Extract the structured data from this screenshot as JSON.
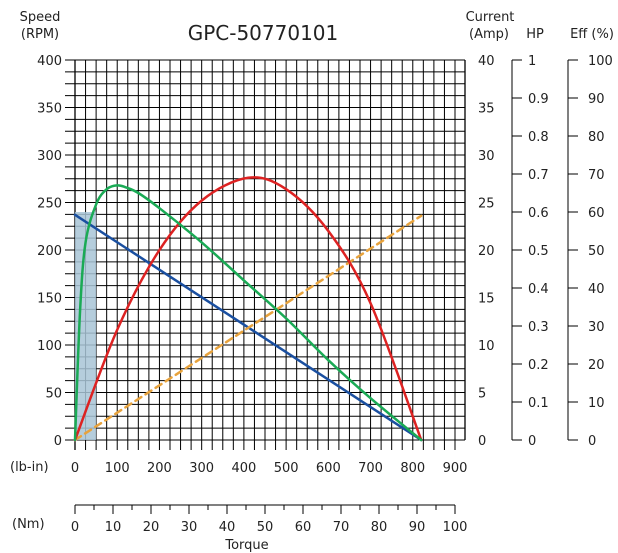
{
  "chart_data": {
    "type": "line",
    "title": "GPC-50770101",
    "xlabel": "Torque",
    "colors": {
      "title": "#2f6db5",
      "speed": "#1a4fa0",
      "current": "#e8a33d",
      "power": "#dd2222",
      "efficiency": "#1aaa55",
      "region_fill": "#a8c4d6"
    },
    "x_axes": {
      "lbin": {
        "unit_label": "(lb-in)",
        "range": [
          0,
          900
        ],
        "ticks": [
          "0",
          "100",
          "200",
          "300",
          "400",
          "500",
          "600",
          "700",
          "800",
          "900"
        ]
      },
      "nm": {
        "unit_label": "(Nm)",
        "range": [
          0,
          100
        ],
        "ticks": [
          "0",
          "10",
          "20",
          "30",
          "40",
          "50",
          "60",
          "70",
          "80",
          "90",
          "100"
        ]
      }
    },
    "y_axes": {
      "speed": {
        "label_line1": "Speed",
        "label_line2": "(RPM)",
        "range": [
          0,
          400
        ],
        "ticks": [
          "0",
          "50",
          "100",
          "150",
          "200",
          "250",
          "300",
          "350",
          "400"
        ]
      },
      "current": {
        "label_line1": "Current",
        "label_line2": "(Amp)",
        "range": [
          0,
          40
        ],
        "ticks": [
          "0",
          "5",
          "10",
          "15",
          "20",
          "25",
          "30",
          "35",
          "40"
        ]
      },
      "hp": {
        "label": "HP",
        "range": [
          0,
          1
        ],
        "ticks": [
          "0",
          "0.1",
          "0.2",
          "0.3",
          "0.4",
          "0.5",
          "0.6",
          "0.7",
          "0.8",
          "0.9",
          "1"
        ]
      },
      "eff": {
        "label": "Eff (%)",
        "range": [
          0,
          100
        ],
        "ticks": [
          "0",
          "10",
          "20",
          "30",
          "40",
          "50",
          "60",
          "70",
          "80",
          "90",
          "100"
        ]
      }
    },
    "grid": true,
    "shaded_region": {
      "x_range": [
        0,
        50
      ],
      "axis": "lbin"
    },
    "series": [
      {
        "key": "speed",
        "axis": "speed",
        "x": [
          0,
          820
        ],
        "y": [
          237,
          0
        ]
      },
      {
        "key": "current",
        "axis": "current",
        "x": [
          0,
          820
        ],
        "y": [
          0,
          23.6
        ]
      },
      {
        "key": "power",
        "axis": "hp",
        "x": [
          0,
          100,
          200,
          300,
          410,
          500,
          600,
          700,
          820
        ],
        "y": [
          0,
          0.29,
          0.5,
          0.63,
          0.69,
          0.66,
          0.55,
          0.36,
          0
        ]
      },
      {
        "key": "efficiency",
        "axis": "eff",
        "x": [
          0,
          12,
          25,
          50,
          75,
          100,
          120,
          150,
          200,
          300,
          400,
          500,
          600,
          700,
          820
        ],
        "y": [
          0,
          34,
          52,
          62,
          66,
          67,
          66.5,
          65,
          61,
          52,
          42,
          32,
          21,
          11,
          0
        ]
      }
    ]
  }
}
